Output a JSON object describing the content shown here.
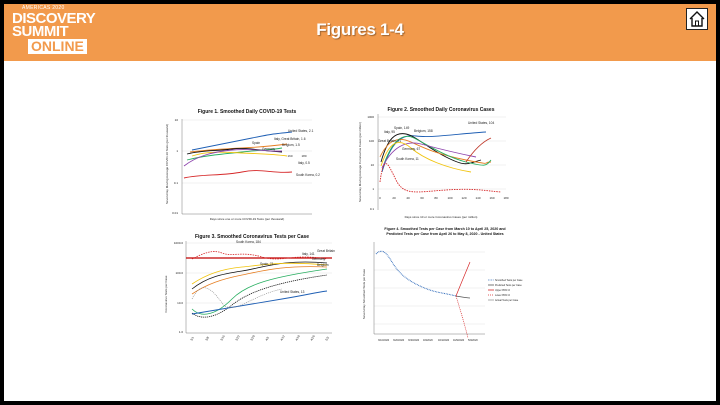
{
  "header": {
    "logo_line1": "AMERICAS 2020",
    "logo_line2": "DISCOVERY",
    "logo_line3": "SUMMIT",
    "logo_line4": "ONLINE",
    "title": "Figures 1-4",
    "home_icon": "home-icon"
  },
  "colors": {
    "banner": "#f29a4c",
    "slide_bg": "#ffffff",
    "frame": "#000000"
  },
  "fig1": {
    "title": "Figure 1. Smoothed Daily COVID-19 Tests",
    "ylabel": "Seven-Day Moving Average COVID-19 Tests (per thousand)",
    "xlabel": "Days since one or more COVID-19 Tests (per thousand)",
    "y_ticks": [
      "10",
      "1",
      "0.1",
      "0.01"
    ],
    "x_ticks": [
      "160",
      "180"
    ],
    "labels": [
      "United States, 2.1",
      "Italy, Great Britain, 1.6",
      "Belgium, 1.5",
      "Spain",
      "Germany",
      "Italy, 0.5",
      "South Korea, 0.2"
    ]
  },
  "fig2": {
    "title": "Figure 2. Smoothed Daily Coronavirus Cases",
    "ylabel": "Seven-Day Moving Average Coronavirus Cases (per million)",
    "xlabel": "Days since 10 or more Coronavirus Cases (per million)",
    "y_ticks": [
      "1000",
      "100",
      "10",
      "1",
      "0.1"
    ],
    "x_ticks": [
      "0",
      "20",
      "40",
      "60",
      "80",
      "100",
      "120",
      "140",
      "160",
      "180"
    ],
    "labels": [
      "United States, 104",
      "Spain, 149",
      "Italy, 95",
      "Belgium, 158",
      "Great Britain, 71",
      "Germany, 67",
      "South Korea, 11"
    ]
  },
  "fig3": {
    "title": "Figure 3. Smoothed Coronavirus Tests per Case",
    "ylabel": "Coronavirus Tests per Case",
    "y_ticks": [
      "1000.0",
      "100.0",
      "10.0",
      "1.0"
    ],
    "labels": [
      "South Korea, 184",
      "Italy, 141",
      "Great Britain",
      "Germany",
      "Belgium",
      "Spain, 71",
      "United States, 13"
    ]
  },
  "fig4": {
    "title_line1": "Figure 4. Smoothed Tests per Case from March 10 to April 25, 2020 and",
    "title_line2": "Predicted Tests per Case from April 26 to May 8, 2020 - United States",
    "ylabel": "Seven-Day Smoothed Tests per Case",
    "legend": [
      "Smoothed Tests per Case",
      "Predicted Tests per Case",
      "Upper 95% CI",
      "Lower 95% CI",
      "Actual Tests per Case"
    ],
    "x_ticks": [
      "3/10/2020",
      "3/20/2020",
      "3/30/2020",
      "4/9/2020",
      "4/19/2020",
      "4/29/2020",
      "5/9/2020"
    ]
  }
}
